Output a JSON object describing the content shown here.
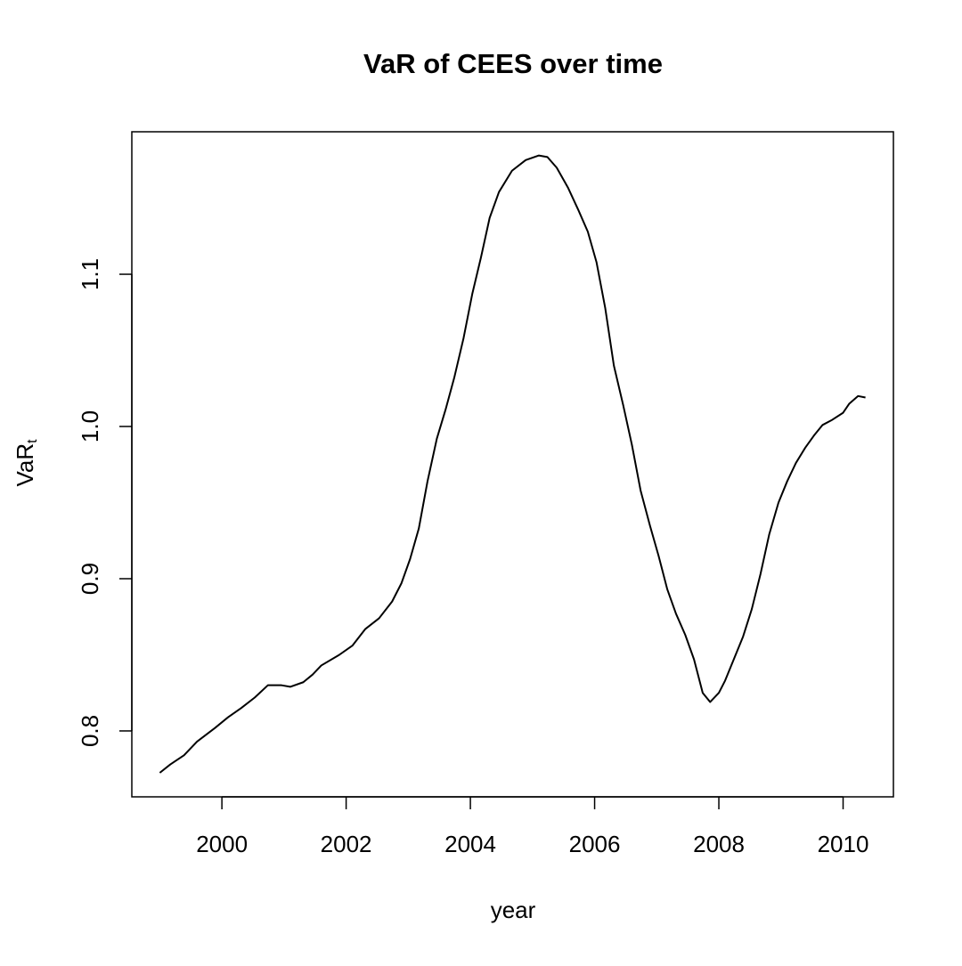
{
  "chart_data": {
    "type": "line",
    "title": "VaR of CEES over time",
    "x_label": "year",
    "y_label": "VaR",
    "y_label_subscript": "t",
    "x": [
      1999.0,
      1999.17,
      1999.39,
      1999.6,
      1999.89,
      2000.1,
      2000.31,
      2000.53,
      2000.74,
      2000.96,
      2001.1,
      2001.31,
      2001.46,
      2001.6,
      2001.89,
      2002.1,
      2002.31,
      2002.53,
      2002.74,
      2002.89,
      2003.03,
      2003.17,
      2003.31,
      2003.46,
      2003.6,
      2003.74,
      2003.89,
      2004.03,
      2004.17,
      2004.31,
      2004.46,
      2004.67,
      2004.89,
      2005.1,
      2005.24,
      2005.39,
      2005.57,
      2005.74,
      2005.89,
      2006.03,
      2006.17,
      2006.31,
      2006.46,
      2006.6,
      2006.74,
      2006.89,
      2007.03,
      2007.17,
      2007.31,
      2007.46,
      2007.6,
      2007.74,
      2007.86,
      2008.0,
      2008.1,
      2008.24,
      2008.39,
      2008.53,
      2008.67,
      2008.81,
      2008.96,
      2009.1,
      2009.24,
      2009.39,
      2009.53,
      2009.67,
      2009.81,
      2010.0,
      2010.1,
      2010.24,
      2010.36
    ],
    "series": [
      {
        "color": "#000000",
        "values": [
          0.7725,
          0.778,
          0.784,
          0.793,
          0.802,
          0.809,
          0.815,
          0.822,
          0.83,
          0.83,
          0.829,
          0.832,
          0.837,
          0.843,
          0.85,
          0.856,
          0.867,
          0.874,
          0.885,
          0.897,
          0.913,
          0.933,
          0.964,
          0.992,
          1.011,
          1.032,
          1.058,
          1.087,
          1.111,
          1.137,
          1.154,
          1.168,
          1.175,
          1.178,
          1.177,
          1.17,
          1.157,
          1.142,
          1.128,
          1.108,
          1.078,
          1.04,
          1.014,
          0.988,
          0.958,
          0.935,
          0.915,
          0.893,
          0.877,
          0.863,
          0.847,
          0.825,
          0.819,
          0.825,
          0.833,
          0.847,
          0.862,
          0.88,
          0.903,
          0.929,
          0.95,
          0.964,
          0.976,
          0.986,
          0.994,
          1.001,
          1.004,
          1.009,
          1.015,
          1.02,
          1.019
        ]
      }
    ],
    "xlim": [
      1998.55,
      2010.81
    ],
    "xticks": [
      2000,
      2002,
      2004,
      2006,
      2008,
      2010
    ],
    "ylim": [
      0.7567,
      1.1936
    ],
    "yticks": [
      0.8,
      0.9,
      {
        "value": 1,
        "label": "1.0"
      },
      1.1
    ]
  }
}
